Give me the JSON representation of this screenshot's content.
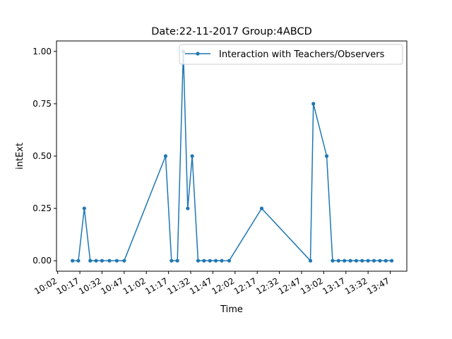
{
  "chart_data": {
    "type": "line",
    "title": "Date:22-11-2017  Group:4ABCD",
    "xlabel": "Time",
    "ylabel": "intExt",
    "x_tick_labels": [
      "10:02",
      "10:17",
      "10:32",
      "10:47",
      "11:02",
      "11:17",
      "11:32",
      "11:47",
      "12:02",
      "12:17",
      "12:32",
      "12:47",
      "13:02",
      "13:17",
      "13:32",
      "13:47"
    ],
    "x_tick_minutes": [
      602,
      617,
      632,
      647,
      662,
      677,
      692,
      707,
      722,
      737,
      752,
      767,
      782,
      797,
      812,
      827
    ],
    "xlim_minutes": [
      601.2,
      838.2
    ],
    "y_ticks": [
      "0.00",
      "0.25",
      "0.50",
      "0.75",
      "1.00"
    ],
    "ylim": [
      -0.05,
      1.05
    ],
    "legend": {
      "position": "top-right"
    },
    "grid": false,
    "color": "#1f77b4",
    "series": [
      {
        "name": "Interaction with Teachers/Observers",
        "x": [
          "10:12",
          "10:16",
          "10:20",
          "10:24",
          "10:28",
          "10:32",
          "10:37",
          "10:42",
          "10:47",
          "11:15",
          "11:19",
          "11:23",
          "11:27",
          "11:30",
          "11:33",
          "11:37",
          "11:41",
          "11:45",
          "11:49",
          "11:53",
          "11:58",
          "12:20",
          "12:53",
          "12:55",
          "13:04",
          "13:08",
          "13:12",
          "13:16",
          "13:20",
          "13:24",
          "13:28",
          "13:32",
          "13:36",
          "13:40",
          "13:44",
          "13:48"
        ],
        "values": [
          0,
          0,
          0.25,
          0,
          0,
          0,
          0,
          0,
          0,
          0.5,
          0,
          0,
          1,
          0.25,
          0.5,
          0,
          0,
          0,
          0,
          0,
          0,
          0.25,
          0,
          0.75,
          0.5,
          0,
          0,
          0,
          0,
          0,
          0,
          0,
          0,
          0,
          0,
          0
        ]
      }
    ]
  }
}
